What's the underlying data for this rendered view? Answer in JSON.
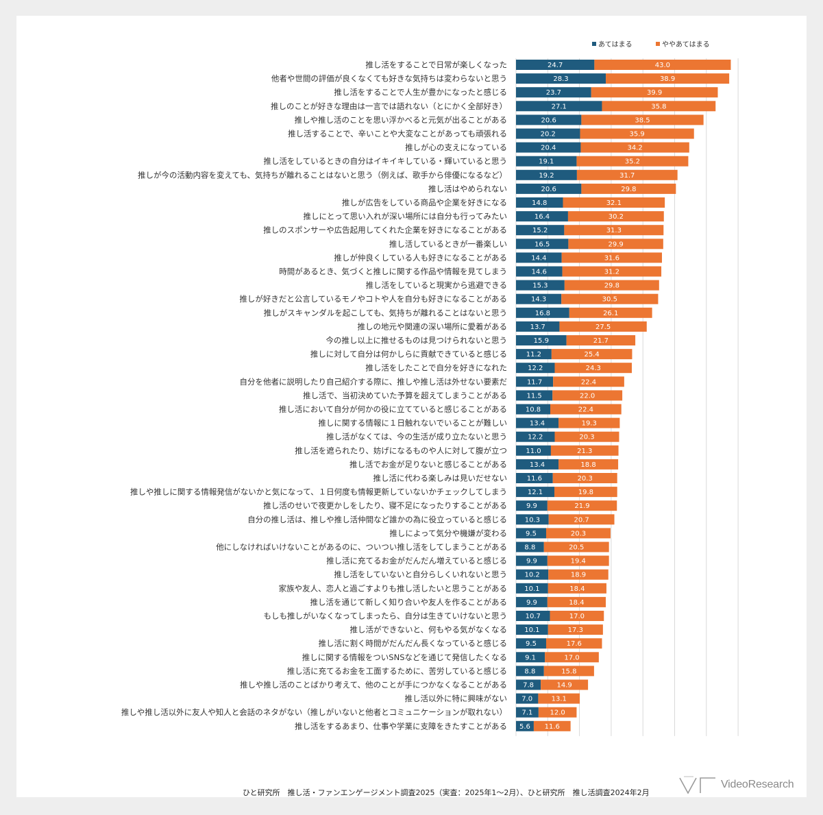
{
  "chart_data": {
    "type": "bar",
    "orientation": "horizontal",
    "stacked": true,
    "legend_position": "top-right",
    "series": [
      {
        "name": "あてはまる",
        "color": "#1f5b7e"
      },
      {
        "name": "ややあてはまる",
        "color": "#ec7632"
      }
    ],
    "rows": [
      {
        "label": "推し活をすることで日常が楽しくなった",
        "values": [
          24.7,
          43.0
        ]
      },
      {
        "label": "他者や世間の評価が良くなくても好きな気持ちは変わらないと思う",
        "values": [
          28.3,
          38.9
        ]
      },
      {
        "label": "推し活をすることで人生が豊かになったと感じる",
        "values": [
          23.7,
          39.9
        ]
      },
      {
        "label": "推しのことが好きな理由は一言では語れない（とにかく全部好き）",
        "values": [
          27.1,
          35.8
        ]
      },
      {
        "label": "推しや推し活のことを思い浮かべると元気が出ることがある",
        "values": [
          20.6,
          38.5
        ]
      },
      {
        "label": "推し活することで、辛いことや大変なことがあっても頑張れる",
        "values": [
          20.2,
          35.9
        ]
      },
      {
        "label": "推しが心の支えになっている",
        "values": [
          20.4,
          34.2
        ]
      },
      {
        "label": "推し活をしているときの自分はイキイキしている・輝いていると思う",
        "values": [
          19.1,
          35.2
        ]
      },
      {
        "label": "推しが今の活動内容を変えても、気持ちが離れることはないと思う（例えば、歌手から俳優になるなど）",
        "values": [
          19.2,
          31.7
        ]
      },
      {
        "label": "推し活はやめられない",
        "values": [
          20.6,
          29.8
        ]
      },
      {
        "label": "推しが広告をしている商品や企業を好きになる",
        "values": [
          14.8,
          32.1
        ]
      },
      {
        "label": "推しにとって思い入れが深い場所には自分も行ってみたい",
        "values": [
          16.4,
          30.2
        ]
      },
      {
        "label": "推しのスポンサーや広告起用してくれた企業を好きになることがある",
        "values": [
          15.2,
          31.3
        ]
      },
      {
        "label": "推し活しているときが一番楽しい",
        "values": [
          16.5,
          29.9
        ]
      },
      {
        "label": "推しが仲良くしている人も好きになることがある",
        "values": [
          14.4,
          31.6
        ]
      },
      {
        "label": "時間があるとき、気づくと推しに関する作品や情報を見てしまう",
        "values": [
          14.6,
          31.2
        ]
      },
      {
        "label": "推し活をしていると現実から逃避できる",
        "values": [
          15.3,
          29.8
        ]
      },
      {
        "label": "推しが好きだと公言しているモノやコトや人を自分も好きになることがある",
        "values": [
          14.3,
          30.5
        ]
      },
      {
        "label": "推しがスキャンダルを起こしても、気持ちが離れることはないと思う",
        "values": [
          16.8,
          26.1
        ]
      },
      {
        "label": "推しの地元や関連の深い場所に愛着がある",
        "values": [
          13.7,
          27.5
        ]
      },
      {
        "label": "今の推し以上に推せるものは見つけられないと思う",
        "values": [
          15.9,
          21.7
        ]
      },
      {
        "label": "推しに対して自分は何かしらに貢献できていると感じる",
        "values": [
          11.2,
          25.4
        ]
      },
      {
        "label": "推し活をしたことで自分を好きになれた",
        "values": [
          12.2,
          24.3
        ]
      },
      {
        "label": "自分を他者に説明したり自己紹介する際に、推しや推し活は外せない要素だ",
        "values": [
          11.7,
          22.4
        ]
      },
      {
        "label": "推し活で、当初決めていた予算を超えてしまうことがある",
        "values": [
          11.5,
          22.0
        ]
      },
      {
        "label": "推し活において自分が何かの役に立てていると感じることがある",
        "values": [
          10.8,
          22.4
        ]
      },
      {
        "label": "推しに関する情報に１日触れないでいることが難しい",
        "values": [
          13.4,
          19.3
        ]
      },
      {
        "label": "推し活がなくては、今の生活が成り立たないと思う",
        "values": [
          12.2,
          20.3
        ]
      },
      {
        "label": "推し活を遮られたり、妨げになるものや人に対して腹が立つ",
        "values": [
          11.0,
          21.3
        ]
      },
      {
        "label": "推し活でお金が足りないと感じることがある",
        "values": [
          13.4,
          18.8
        ]
      },
      {
        "label": "推し活に代わる楽しみは見いだせない",
        "values": [
          11.6,
          20.3
        ]
      },
      {
        "label": "推しや推しに関する情報発信がないかと気になって、１日何度も情報更新していないかチェックしてしまう",
        "values": [
          12.1,
          19.8
        ]
      },
      {
        "label": "推し活のせいで夜更かしをしたり、寝不足になったりすることがある",
        "values": [
          9.9,
          21.9
        ]
      },
      {
        "label": "自分の推し活は、推しや推し活仲間など誰かの為に役立っていると感じる",
        "values": [
          10.3,
          20.7
        ]
      },
      {
        "label": "推しによって気分や機嫌が変わる",
        "values": [
          9.5,
          20.3
        ]
      },
      {
        "label": "他にしなければいけないことがあるのに、ついつい推し活をしてしまうことがある",
        "values": [
          8.8,
          20.5
        ]
      },
      {
        "label": "推し活に充てるお金がだんだん増えていると感じる",
        "values": [
          9.9,
          19.4
        ]
      },
      {
        "label": "推し活をしていないと自分らしくいれないと思う",
        "values": [
          10.2,
          18.9
        ]
      },
      {
        "label": "家族や友人、恋人と過ごすよりも推し活したいと思うことがある",
        "values": [
          10.1,
          18.4
        ]
      },
      {
        "label": "推し活を通じて新しく知り合いや友人を作ることがある",
        "values": [
          9.9,
          18.4
        ]
      },
      {
        "label": "もしも推しがいなくなってしまったら、自分は生きていけないと思う",
        "values": [
          10.7,
          17.0
        ]
      },
      {
        "label": "推し活ができないと、何もやる気がなくなる",
        "values": [
          10.1,
          17.3
        ]
      },
      {
        "label": "推し活に割く時間がだんだん長くなっていると感じる",
        "values": [
          9.5,
          17.6
        ]
      },
      {
        "label": "推しに関する情報をついSNSなどを通じて発信したくなる",
        "values": [
          9.1,
          17.0
        ]
      },
      {
        "label": "推し活に充てるお金を工面するために、苦労していると感じる",
        "values": [
          8.8,
          15.8
        ]
      },
      {
        "label": "推しや推し活のことばかり考えて、他のことが手につかなくなることがある",
        "values": [
          7.8,
          14.9
        ]
      },
      {
        "label": "推し活以外に特に興味がない",
        "values": [
          7.0,
          13.1
        ]
      },
      {
        "label": "推しや推し活以外に友人や知人と会話のネタがない（推しがいないと他者とコミュニケーションが取れない）",
        "values": [
          7.1,
          12.0
        ]
      },
      {
        "label": "推し活をするあまり、仕事や学業に支障をきたすことがある",
        "values": [
          5.6,
          11.6
        ]
      }
    ],
    "xlim": [
      0,
      70
    ],
    "x_gridlines": [
      0,
      10,
      20,
      30,
      40,
      50,
      60,
      70
    ],
    "tick_labels_visible": false
  },
  "source": "ひと研究所　推し活・ファンエンゲージメント調査2025（実査：2025年1～2月）、ひと研究所　推し活調査2024年2月",
  "logo": {
    "text": "VideoResearch"
  }
}
